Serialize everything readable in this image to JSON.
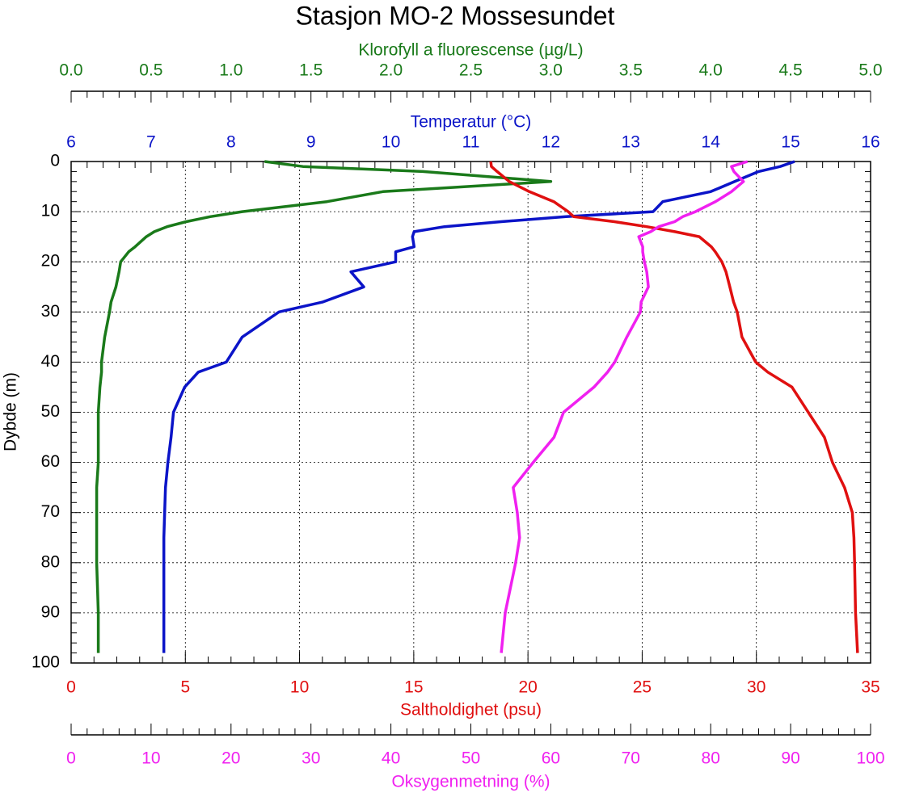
{
  "chart_data": {
    "type": "profile",
    "title": "Stasjon MO-2 Mossesundet",
    "y_label": "Dybde (m)",
    "ylim": [
      0,
      100
    ],
    "y_inverted": true,
    "yticks": [
      0,
      10,
      20,
      30,
      40,
      50,
      60,
      70,
      80,
      90,
      100
    ],
    "grid": true,
    "depth": [
      0,
      1,
      2,
      4,
      6,
      8,
      10,
      11,
      12,
      13,
      14,
      15,
      17,
      18,
      20,
      22,
      25,
      28,
      30,
      35,
      40,
      42,
      45,
      50,
      55,
      60,
      65,
      70,
      75,
      80,
      90,
      98
    ],
    "series": [
      {
        "name": "Klorofyll a fluorescense (µg/L)",
        "color": "#1a7a1a",
        "xlim": [
          0,
          5
        ],
        "xticks": [
          {
            "value": 0,
            "label": "0.0"
          },
          0.5,
          {
            "value": 1,
            "label": "1.0"
          },
          1.5,
          {
            "value": 2,
            "label": "2.0"
          },
          2.5,
          {
            "value": 3,
            "label": "3.0"
          },
          3.5,
          {
            "value": 4,
            "label": "4.0"
          },
          4.5,
          {
            "value": 5,
            "label": "5.0"
          }
        ],
        "values": [
          1.21,
          1.45,
          2.2,
          3.0,
          1.95,
          1.6,
          1.07,
          0.87,
          0.72,
          0.6,
          0.52,
          0.47,
          0.4,
          0.36,
          0.31,
          0.3,
          0.28,
          0.25,
          0.24,
          0.21,
          0.19,
          0.19,
          0.18,
          0.17,
          0.17,
          0.17,
          0.16,
          0.16,
          0.16,
          0.16,
          0.17,
          0.17
        ]
      },
      {
        "name": "Temperatur (°C)",
        "color": "#0b14c8",
        "xlim": [
          6,
          16
        ],
        "xticks": [
          6,
          7,
          8,
          9,
          10,
          11,
          12,
          13,
          14,
          15,
          16
        ],
        "values": [
          15.05,
          14.87,
          14.6,
          14.3,
          14.0,
          13.4,
          13.28,
          12.19,
          11.38,
          10.67,
          10.29,
          10.27,
          10.29,
          10.06,
          10.06,
          9.5,
          9.66,
          9.15,
          8.6,
          8.14,
          7.94,
          7.59,
          7.42,
          7.28,
          7.25,
          7.21,
          7.18,
          7.17,
          7.16,
          7.16,
          7.16,
          7.16
        ]
      },
      {
        "name": "Saltholdighet (psu)",
        "color": "#e01010",
        "xlim": [
          0,
          35
        ],
        "grid": true,
        "xticks": [
          0,
          5,
          10,
          15,
          20,
          25,
          30,
          35
        ],
        "values": [
          18.37,
          18.4,
          18.65,
          19.18,
          20.06,
          21.13,
          21.76,
          22.0,
          23.78,
          25.2,
          26.43,
          27.5,
          28.03,
          28.2,
          28.49,
          28.67,
          28.84,
          29.0,
          29.16,
          29.37,
          29.97,
          30.5,
          31.56,
          32.27,
          32.98,
          33.33,
          33.86,
          34.2,
          34.27,
          34.3,
          34.34,
          34.43
        ]
      },
      {
        "name": "Oksygenmetning (%)",
        "color": "#f020f0",
        "xlim": [
          0,
          100
        ],
        "xticks": [
          0,
          10,
          20,
          30,
          40,
          50,
          60,
          70,
          80,
          90,
          100
        ],
        "values": [
          84.6,
          82.6,
          82.9,
          84.1,
          82.6,
          80.6,
          78.1,
          76.5,
          75.5,
          73.5,
          72.5,
          71.0,
          71.5,
          71.5,
          71.7,
          72.0,
          72.2,
          71.3,
          71.2,
          69.5,
          68.0,
          67.1,
          65.4,
          61.6,
          60.4,
          57.8,
          55.3,
          55.8,
          56.1,
          55.6,
          54.3,
          53.8
        ]
      }
    ]
  }
}
